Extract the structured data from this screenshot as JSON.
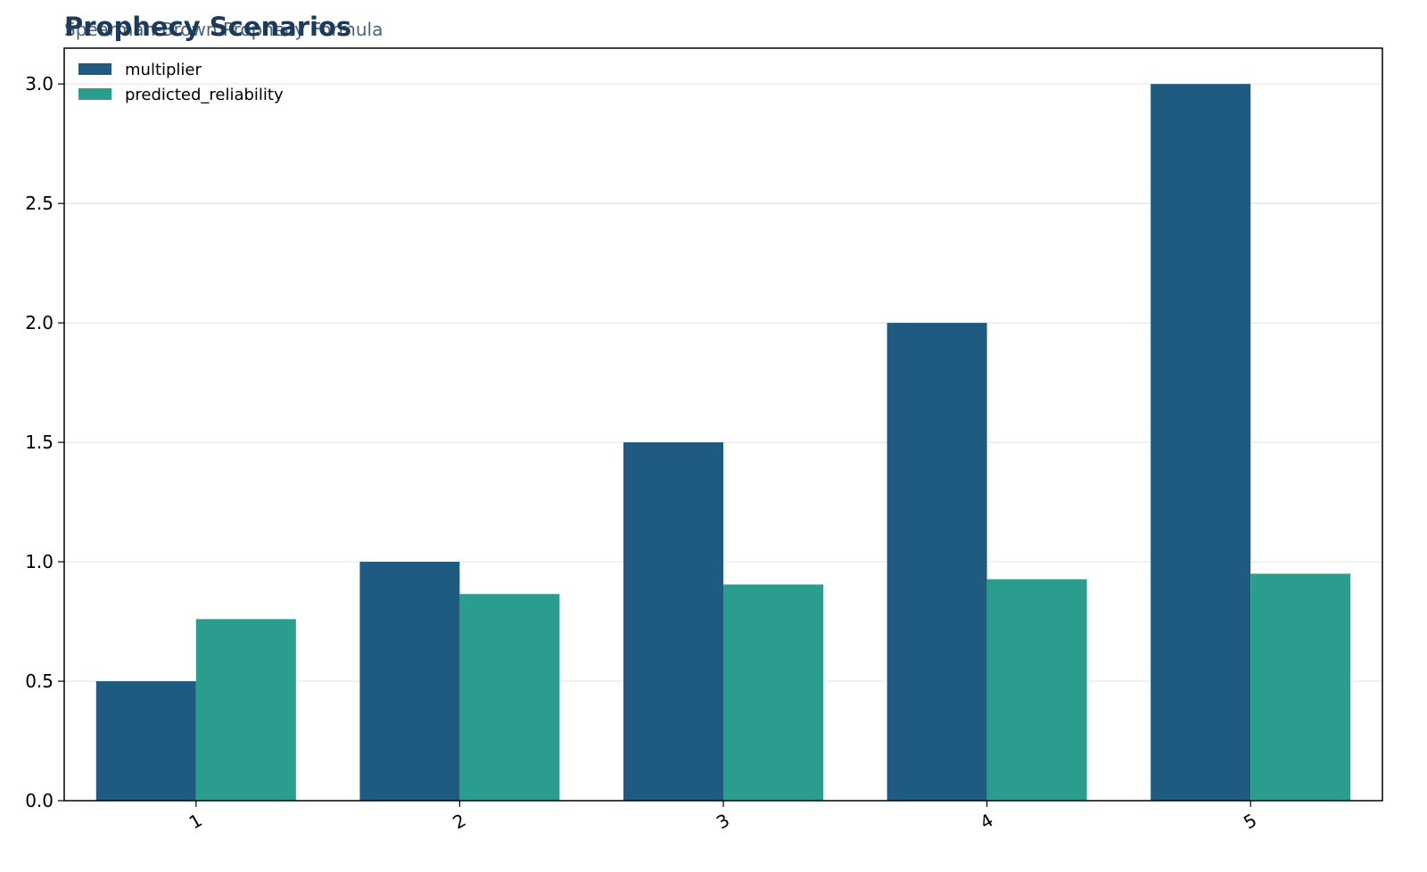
{
  "chart_data": {
    "type": "bar",
    "title": "Prophecy Scenarios",
    "subtitle": "Spearman-Brown Prophecy Formula",
    "categories": [
      "1",
      "2",
      "3",
      "4",
      "5"
    ],
    "series": [
      {
        "name": "multiplier",
        "values": [
          0.5,
          1.0,
          1.5,
          2.0,
          3.0
        ],
        "color": "#1f5a80"
      },
      {
        "name": "predicted_reliability",
        "values": [
          0.76,
          0.865,
          0.905,
          0.927,
          0.95
        ],
        "color": "#2a9d8f"
      }
    ],
    "ylim": [
      0,
      3.15
    ],
    "yticks": [
      "0.0",
      "0.5",
      "1.0",
      "1.5",
      "2.0",
      "2.5",
      "3.0"
    ],
    "xlabel": "",
    "ylabel": "",
    "grid": "horizontal",
    "legend_position": "top-left",
    "colors": {
      "title": "#1b3a5c",
      "subtitle": "#4a6478",
      "grid": "#e6e6e6",
      "axis": "#000000"
    }
  }
}
